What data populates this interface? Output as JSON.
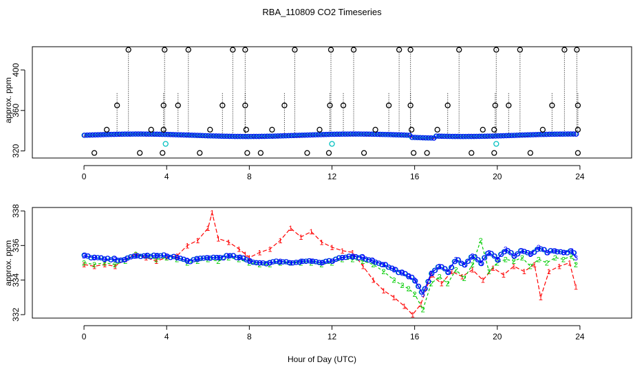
{
  "chart_data": [
    {
      "type": "scatter",
      "title": "RBA_110809  CO2 Timeseries",
      "xlabel": "",
      "ylabel": "approx. ppm",
      "xlim": [
        -2.5,
        26.5
      ],
      "ylim": [
        313,
        423
      ],
      "x_ticks": [
        0,
        4,
        8,
        12,
        16,
        20,
        24
      ],
      "x_tick_labels": [
        "0",
        "4",
        "8",
        "12",
        "16",
        "20",
        "24"
      ],
      "y_ticks": [
        320,
        360,
        400
      ],
      "y_tick_labels": [
        "320",
        "360",
        "400"
      ],
      "spike_hours": [
        2.15,
        3.9,
        5.05,
        7.2,
        7.8,
        10.2,
        11.95,
        13.05,
        15.25,
        15.8,
        18.15,
        19.95,
        21.1,
        23.25,
        23.85
      ],
      "spike_value": 420,
      "mid_hours": [
        1.6,
        3.85,
        4.55,
        6.7,
        7.8,
        9.7,
        11.9,
        12.55,
        14.75,
        15.8,
        17.6,
        19.9,
        20.55,
        22.65,
        23.9
      ],
      "mid_value": 365,
      "low_hours": [
        0.5,
        2.7,
        3.8,
        5.6,
        7.9,
        8.55,
        10.8,
        11.85,
        13.55,
        15.95,
        16.6,
        18.75,
        19.85,
        21.6,
        23.9
      ],
      "low_value": 318,
      "small_hours": [
        1.1,
        3.25,
        3.85,
        6.1,
        7.85,
        9.1,
        11.4,
        14.1,
        15.85,
        17.1,
        19.3,
        19.85,
        22.2,
        23.9
      ],
      "small_value": 341,
      "cyan_hours": [
        3.95,
        12.0,
        19.95
      ],
      "cyan_value": 327,
      "series": [
        {
          "name": "1",
          "color": "#ff0000"
        },
        {
          "name": "2",
          "color": "#00cc00"
        },
        {
          "name": "3",
          "color": "#0000ff"
        }
      ]
    },
    {
      "type": "line",
      "title": "",
      "xlabel": "Hour of Day (UTC)",
      "ylabel": "approx. ppm",
      "xlim": [
        -2.5,
        26.5
      ],
      "ylim": [
        331.8,
        338.2
      ],
      "x_ticks": [
        0,
        4,
        8,
        12,
        16,
        20,
        24
      ],
      "x_tick_labels": [
        "0",
        "4",
        "8",
        "12",
        "16",
        "20",
        "24"
      ],
      "y_ticks": [
        332,
        334,
        336,
        338
      ],
      "y_tick_labels": [
        "332",
        "334",
        "336",
        "338"
      ],
      "series": [
        {
          "name": "1",
          "color": "#ff0000",
          "x": [
            0,
            0.5,
            1,
            1.5,
            2,
            2.5,
            3,
            3.5,
            4,
            4.5,
            5,
            5.5,
            6,
            6.2,
            6.5,
            7,
            7.5,
            7.8,
            8,
            8.5,
            9,
            9.5,
            10,
            10.5,
            11,
            11.5,
            12,
            12.5,
            13,
            13.5,
            14,
            14.5,
            15,
            15.5,
            15.9,
            16.3,
            16.8,
            17.3,
            17.8,
            18.3,
            18.8,
            19.3,
            19.8,
            20.3,
            20.8,
            21.3,
            21.8,
            22.1,
            22.5,
            23,
            23.5,
            23.8
          ],
          "values": [
            334.9,
            334.8,
            334.9,
            334.8,
            335.2,
            335.5,
            335.3,
            335.1,
            335.3,
            335.4,
            336.0,
            336.3,
            337.0,
            337.9,
            336.4,
            336.2,
            335.8,
            335.5,
            335.3,
            335.6,
            335.8,
            336.3,
            337.0,
            336.5,
            336.8,
            336.2,
            335.9,
            335.7,
            335.6,
            334.8,
            334.0,
            333.4,
            333.0,
            332.5,
            332.0,
            332.6,
            334.3,
            333.8,
            334.5,
            334.2,
            334.6,
            334.0,
            334.7,
            334.3,
            334.8,
            334.5,
            334.9,
            333.0,
            334.5,
            334.8,
            335.0,
            333.6
          ]
        },
        {
          "name": "2",
          "color": "#00cc00",
          "x": [
            0,
            0.5,
            1,
            1.5,
            2,
            2.5,
            3,
            3.5,
            4,
            4.5,
            5,
            5.5,
            6,
            6.5,
            7,
            7.5,
            8,
            8.5,
            9,
            9.5,
            10,
            10.5,
            11,
            11.5,
            12,
            12.5,
            13,
            13.5,
            14,
            14.5,
            15,
            15.4,
            15.7,
            16.0,
            16.4,
            16.8,
            17.2,
            17.6,
            18.0,
            18.4,
            18.8,
            19.2,
            19.6,
            20.0,
            20.4,
            20.8,
            21.2,
            21.6,
            22.0,
            22.4,
            22.8,
            23.2,
            23.6,
            23.8
          ],
          "values": [
            335.0,
            334.9,
            335.0,
            334.9,
            335.1,
            335.5,
            335.4,
            335.2,
            335.3,
            335.2,
            335.0,
            335.1,
            335.2,
            335.1,
            335.3,
            335.2,
            335.0,
            334.9,
            334.9,
            335.0,
            335.0,
            335.0,
            335.0,
            334.9,
            335.0,
            335.2,
            335.2,
            335.1,
            334.9,
            334.5,
            334.0,
            333.7,
            333.5,
            333.2,
            332.3,
            333.8,
            334.2,
            333.8,
            334.6,
            334.1,
            334.9,
            336.3,
            334.5,
            335.0,
            335.2,
            335.1,
            335.3,
            334.8,
            335.2,
            335.0,
            335.3,
            335.2,
            335.4,
            334.9
          ]
        },
        {
          "name": "3",
          "color": "#0000ff",
          "x": [
            0,
            0.5,
            1,
            1.5,
            2,
            2.5,
            3,
            3.5,
            4,
            4.5,
            5,
            5.5,
            6,
            6.5,
            7,
            7.5,
            8,
            8.5,
            9,
            9.5,
            10,
            10.5,
            11,
            11.5,
            12,
            12.5,
            13,
            13.5,
            14,
            14.5,
            15,
            15.4,
            15.7,
            16.0,
            16.4,
            16.8,
            17.2,
            17.6,
            18.0,
            18.4,
            18.8,
            19.2,
            19.6,
            20.0,
            20.4,
            20.8,
            21.2,
            21.6,
            22.0,
            22.4,
            22.8,
            23.2,
            23.6,
            23.8
          ],
          "values": [
            335.4,
            335.3,
            335.2,
            335.2,
            335.2,
            335.4,
            335.4,
            335.4,
            335.4,
            335.3,
            335.1,
            335.2,
            335.3,
            335.3,
            335.4,
            335.3,
            335.1,
            335.0,
            335.0,
            335.1,
            335.0,
            335.1,
            335.1,
            335.0,
            335.1,
            335.3,
            335.4,
            335.3,
            335.1,
            334.9,
            334.6,
            334.4,
            334.2,
            334.0,
            333.2,
            334.4,
            334.8,
            334.5,
            335.2,
            334.9,
            335.4,
            335.0,
            335.6,
            335.2,
            335.8,
            335.4,
            335.7,
            335.5,
            335.9,
            335.6,
            335.7,
            335.6,
            335.7,
            335.3
          ]
        }
      ]
    }
  ]
}
